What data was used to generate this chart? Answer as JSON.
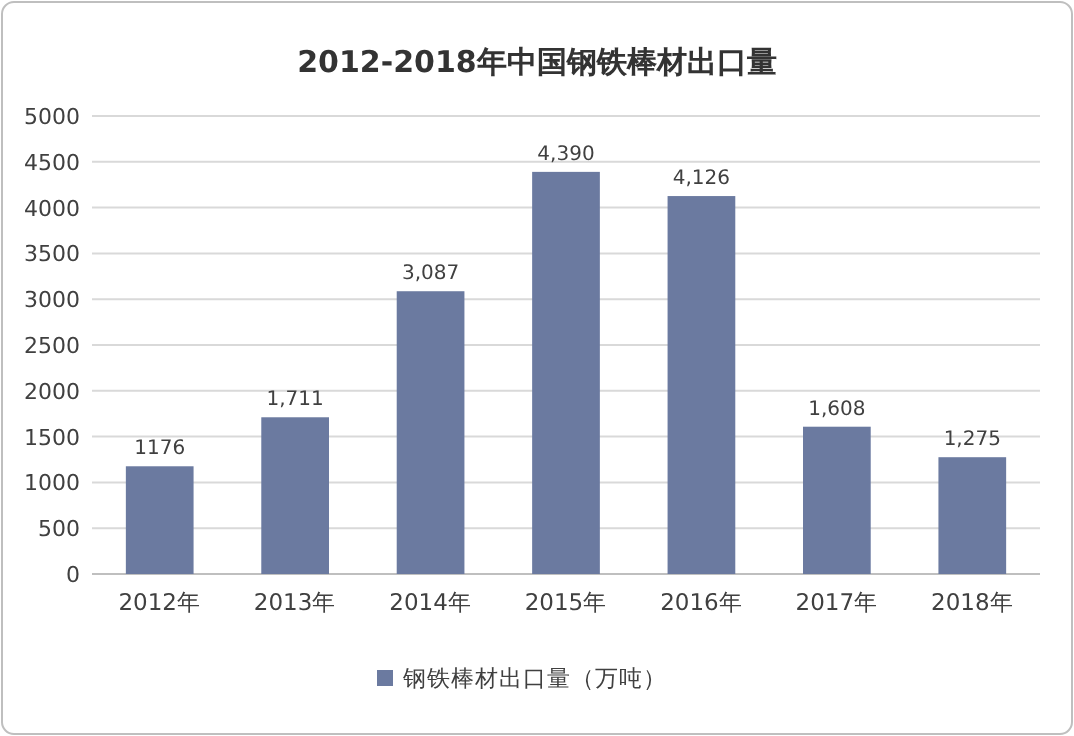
{
  "chart_data": {
    "type": "bar",
    "title": "2012-2018年中国钢铁棒材出口量",
    "categories": [
      "2012年",
      "2013年",
      "2014年",
      "2015年",
      "2016年",
      "2017年",
      "2018年"
    ],
    "series": [
      {
        "name": "钢铁棒材出口量（万吨）",
        "color": "#6b7aa0",
        "values": [
          1176,
          1711,
          3087,
          4390,
          4126,
          1608,
          1275
        ],
        "value_labels": [
          "1176",
          "1,711",
          "3,087",
          "4,390",
          "4,126",
          "1,608",
          "1,275"
        ]
      }
    ],
    "ylim": [
      0,
      5000
    ],
    "yticks": [
      0,
      500,
      1000,
      1500,
      2000,
      2500,
      3000,
      3500,
      4000,
      4500,
      5000
    ],
    "grid": "y",
    "legend": "bottom"
  }
}
